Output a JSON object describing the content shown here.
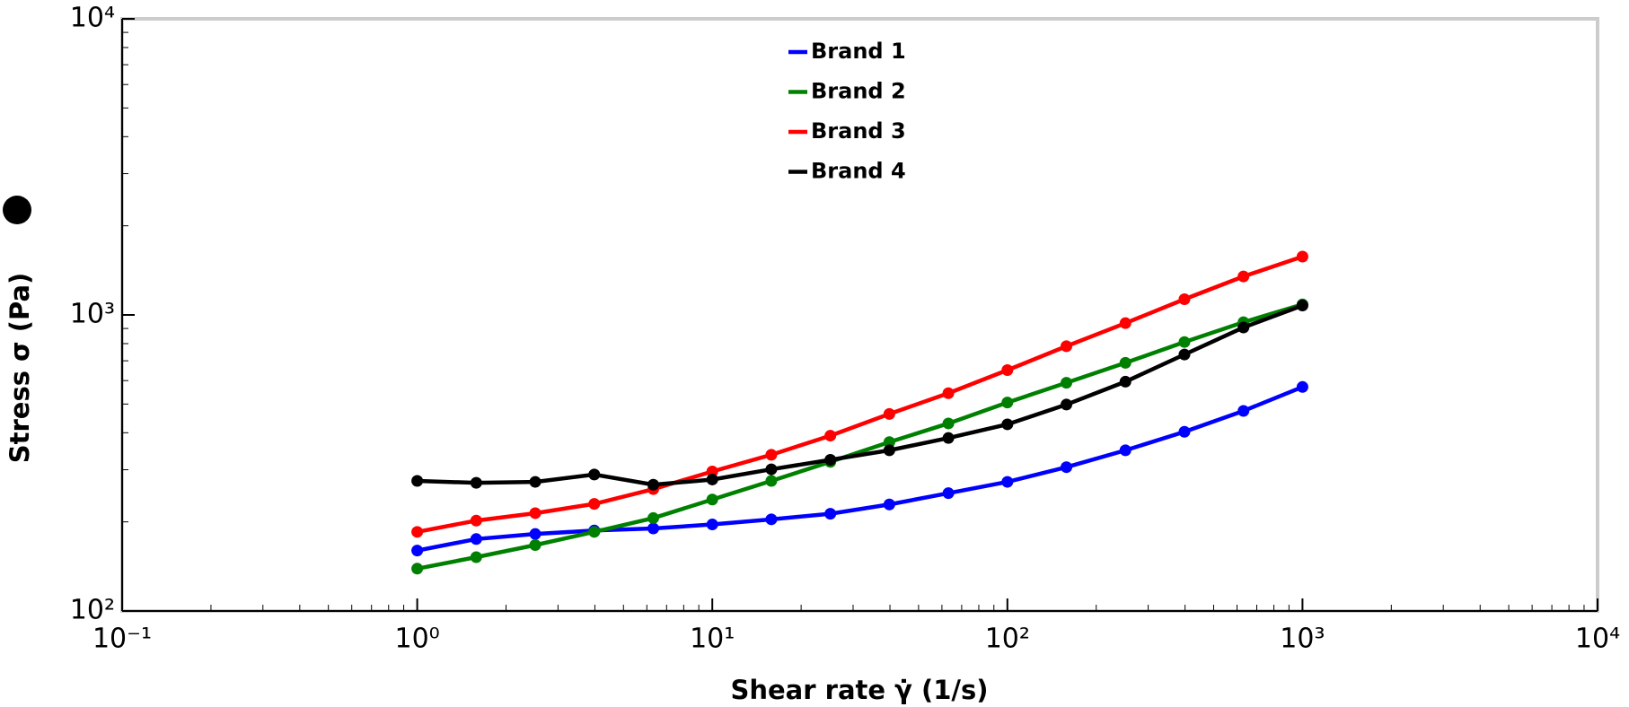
{
  "chart_data": {
    "type": "line",
    "x_label": "Shear rate γ̇ (1/s)",
    "y_label": "Stress σ (Pa)",
    "x": [
      1,
      1.585,
      2.512,
      3.981,
      6.31,
      10,
      15.85,
      25.12,
      39.81,
      63.1,
      100,
      158.5,
      251.2,
      398.1,
      631,
      1000
    ],
    "series": [
      {
        "name": "Brand 1",
        "color": "#0000ff",
        "values": [
          160,
          175,
          182,
          187,
          190,
          196,
          204,
          213,
          229,
          250,
          273,
          306,
          349,
          403,
          474,
          571
        ]
      },
      {
        "name": "Brand 2",
        "color": "#008000",
        "values": [
          139,
          152,
          167,
          185,
          206,
          238,
          275,
          319,
          372,
          430,
          506,
          590,
          689,
          810,
          945,
          1085
        ]
      },
      {
        "name": "Brand 3",
        "color": "#ff0000",
        "values": [
          185,
          202,
          214,
          230,
          258,
          296,
          337,
          391,
          463,
          544,
          651,
          784,
          938,
          1130,
          1349,
          1574
        ]
      },
      {
        "name": "Brand 4",
        "color": "#000000",
        "values": [
          275,
          271,
          273,
          289,
          267,
          278,
          301,
          324,
          349,
          384,
          427,
          498,
          595,
          735,
          907,
          1076
        ]
      }
    ],
    "x_log": true,
    "y_log": true,
    "xlim": [
      0.1,
      10000
    ],
    "ylim": [
      100,
      10000
    ],
    "xticks": [
      {
        "value": 0.1,
        "label": "10⁻¹"
      },
      {
        "value": 1,
        "label": "10⁰"
      },
      {
        "value": 10,
        "label": "10¹"
      },
      {
        "value": 100,
        "label": "10²"
      },
      {
        "value": 1000,
        "label": "10³"
      },
      {
        "value": 10000,
        "label": "10⁴"
      }
    ],
    "yticks": [
      {
        "value": 100,
        "label": "10²"
      },
      {
        "value": 1000,
        "label": "10³"
      },
      {
        "value": 10000,
        "label": "10⁴"
      }
    ],
    "grid": false,
    "legend": "top"
  }
}
